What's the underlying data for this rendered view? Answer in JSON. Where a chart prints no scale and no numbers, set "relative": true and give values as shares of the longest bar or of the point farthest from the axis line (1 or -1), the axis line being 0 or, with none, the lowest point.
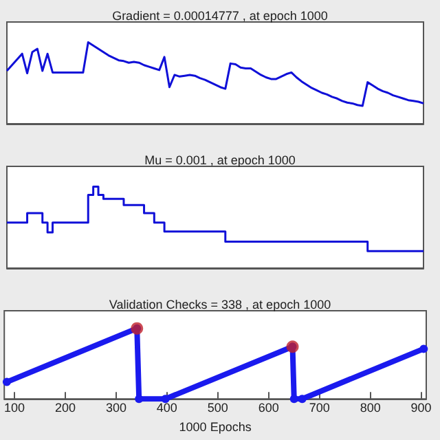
{
  "chart_data": [
    {
      "type": "line",
      "title": "Gradient = 0.00014777 , at epoch 1000",
      "relative": true,
      "tick_labels": false,
      "categories": [
        null,
        null,
        null,
        null,
        null,
        null,
        null,
        null,
        null,
        null,
        null,
        null,
        null,
        null,
        null,
        null,
        null,
        null,
        null,
        null,
        null,
        null,
        null,
        null,
        null,
        null,
        null,
        null,
        null,
        null,
        null,
        null,
        null,
        null,
        null,
        null,
        null,
        null,
        null,
        null,
        null,
        null,
        null,
        null,
        null,
        null,
        null,
        null,
        null,
        null,
        null,
        null,
        null,
        null,
        null,
        null,
        null,
        null,
        null,
        null,
        null,
        null,
        null,
        null,
        null,
        null,
        null,
        null,
        null,
        null,
        null,
        null,
        null,
        null,
        null,
        null,
        null,
        null,
        null,
        null,
        null,
        null,
        null
      ],
      "series": [
        {
          "color": "#1010d8",
          "values": [
            0.65,
            0.72,
            0.79,
            0.86,
            0.62,
            0.88,
            0.92,
            0.65,
            0.86,
            0.63,
            0.63,
            0.63,
            0.63,
            0.63,
            0.63,
            0.63,
            1.0,
            0.96,
            0.92,
            0.88,
            0.84,
            0.81,
            0.78,
            0.77,
            0.75,
            0.76,
            0.75,
            0.72,
            0.7,
            0.68,
            0.66,
            0.82,
            0.45,
            0.6,
            0.58,
            0.59,
            0.6,
            0.59,
            0.56,
            0.54,
            0.51,
            0.48,
            0.45,
            0.43,
            0.74,
            0.73,
            0.69,
            0.68,
            0.68,
            0.64,
            0.6,
            0.57,
            0.55,
            0.55,
            0.58,
            0.61,
            0.63,
            0.57,
            0.52,
            0.48,
            0.44,
            0.41,
            0.38,
            0.36,
            0.33,
            0.31,
            0.28,
            0.26,
            0.25,
            0.23,
            0.22,
            0.51,
            0.47,
            0.43,
            0.4,
            0.38,
            0.35,
            0.33,
            0.31,
            0.29,
            0.28,
            0.27,
            0.25
          ]
        }
      ]
    },
    {
      "type": "step",
      "title": "Mu = 0.001 , at epoch 1000",
      "relative": true,
      "tick_labels": false,
      "categories": [
        null,
        null,
        null,
        null,
        null,
        null,
        null,
        null,
        null,
        null,
        null,
        null,
        null,
        null,
        null,
        null,
        null,
        null,
        null,
        null,
        null,
        null,
        null,
        null,
        null,
        null,
        null,
        null,
        null,
        null,
        null,
        null,
        null,
        null,
        null,
        null,
        null,
        null,
        null,
        null,
        null,
        null,
        null,
        null,
        null,
        null,
        null,
        null,
        null,
        null,
        null,
        null,
        null,
        null,
        null,
        null,
        null,
        null,
        null,
        null,
        null,
        null,
        null,
        null,
        null,
        null,
        null,
        null,
        null,
        null,
        null,
        null,
        null,
        null,
        null,
        null,
        null,
        null,
        null,
        null,
        null,
        null,
        null
      ],
      "series": [
        {
          "color": "#1010d8",
          "values": [
            0.56,
            0.56,
            0.56,
            0.56,
            0.675,
            0.675,
            0.675,
            0.56,
            0.44,
            0.56,
            0.56,
            0.56,
            0.56,
            0.56,
            0.56,
            0.56,
            0.9,
            1.0,
            0.9,
            0.85,
            0.85,
            0.85,
            0.85,
            0.775,
            0.775,
            0.775,
            0.775,
            0.675,
            0.675,
            0.56,
            0.56,
            0.45,
            0.45,
            0.45,
            0.45,
            0.45,
            0.45,
            0.45,
            0.45,
            0.45,
            0.45,
            0.45,
            0.45,
            0.325,
            0.325,
            0.325,
            0.325,
            0.325,
            0.325,
            0.325,
            0.325,
            0.325,
            0.325,
            0.325,
            0.325,
            0.325,
            0.325,
            0.325,
            0.325,
            0.325,
            0.325,
            0.325,
            0.325,
            0.325,
            0.325,
            0.325,
            0.325,
            0.325,
            0.325,
            0.325,
            0.325,
            0.21,
            0.21,
            0.21,
            0.21,
            0.21,
            0.21,
            0.21,
            0.21,
            0.21,
            0.21,
            0.21,
            0.21
          ]
        }
      ]
    },
    {
      "type": "line",
      "title": "Validation Checks = 338 , at epoch 1000",
      "xlabel": "1000 Epochs",
      "relative": true,
      "tick_labels": "x",
      "marker": "circle",
      "xlim": [
        80,
        910
      ],
      "xticks": [
        100,
        200,
        300,
        400,
        500,
        600,
        700,
        800,
        900
      ],
      "series": [
        {
          "color": "#1a1aee",
          "x": [
            85,
            341,
            345,
            397,
            647,
            650,
            666,
            905
          ],
          "values": [
            0.24,
            1.0,
            0,
            0,
            0.74,
            0,
            0,
            0.71
          ]
        },
        {
          "type": "scatter",
          "color": "#c0202a",
          "x": [
            341,
            647
          ],
          "values": [
            1.0,
            0.74
          ]
        }
      ]
    }
  ]
}
